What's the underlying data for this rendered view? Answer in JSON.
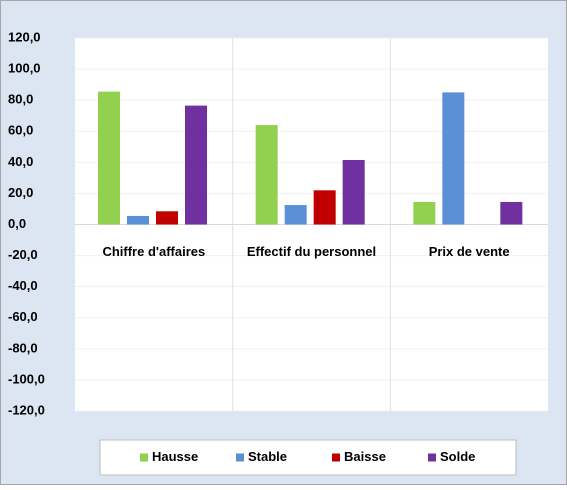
{
  "chart_data": {
    "type": "bar",
    "categories": [
      "Chiffre d'affaires",
      "Effectif du personnel",
      "Prix de vente"
    ],
    "series": [
      {
        "name": "Hausse",
        "color": "#92d050",
        "values": [
          85.5,
          64,
          14.5
        ]
      },
      {
        "name": "Stable",
        "color": "#5b8fd6",
        "values": [
          5.5,
          12.5,
          85
        ]
      },
      {
        "name": "Baisse",
        "color": "#c00000",
        "values": [
          8.5,
          22,
          0
        ]
      },
      {
        "name": "Solde",
        "color": "#7030a0",
        "values": [
          76.5,
          41.5,
          14.5
        ]
      }
    ],
    "ylim": [
      -120,
      120
    ],
    "yticks": [
      {
        "value": -120,
        "label": "-120,0"
      },
      {
        "value": -100,
        "label": "-100,0"
      },
      {
        "value": -80,
        "label": "-80,0"
      },
      {
        "value": -60,
        "label": "-60,0"
      },
      {
        "value": -40,
        "label": "-40,0"
      },
      {
        "value": -20,
        "label": "-20,0"
      },
      {
        "value": 0,
        "label": "0,0"
      },
      {
        "value": 20,
        "label": "20,0"
      },
      {
        "value": 40,
        "label": "40,0"
      },
      {
        "value": 60,
        "label": "60,0"
      },
      {
        "value": 80,
        "label": "80,0"
      },
      {
        "value": 100,
        "label": "100,0"
      },
      {
        "value": 120,
        "label": "120,0"
      }
    ],
    "grid": true,
    "legend": "bottom"
  }
}
